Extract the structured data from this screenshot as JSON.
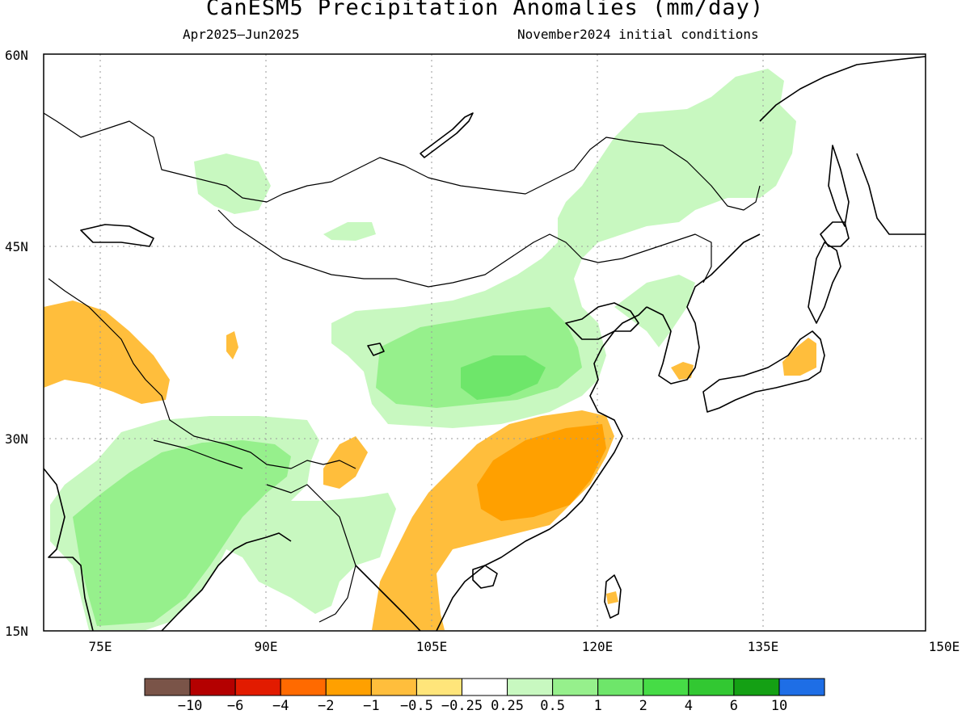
{
  "title": "CanESM5 Precipitation Anomalies (mm/day)",
  "period": "Apr2025—Jun2025",
  "initial_conditions": "November2024 initial conditions",
  "lat_labels": [
    "60N",
    "45N",
    "30N",
    "15N"
  ],
  "lon_labels": [
    "75E",
    "90E",
    "105E",
    "120E",
    "135E",
    "150E"
  ],
  "colorbar": {
    "colors": [
      "#7a5448",
      "#b40000",
      "#e21b00",
      "#ff6a00",
      "#ffa000",
      "#ffbe3c",
      "#ffe57a",
      "#ffffff",
      "#c8f8c0",
      "#96f08c",
      "#6ee66a",
      "#46dc46",
      "#32c832",
      "#14a014",
      "#1e6ee6"
    ],
    "labels": [
      "−10",
      "−6",
      "−4",
      "−2",
      "−1",
      "−0.5",
      "−0.25",
      "0.25",
      "0.5",
      "1",
      "2",
      "4",
      "6",
      "10"
    ]
  },
  "anomaly_regions": [
    {
      "name": "north-china-wet",
      "color": "#c8f8c0"
    },
    {
      "name": "north-china-wet-core",
      "color": "#96f08c"
    },
    {
      "name": "north-china-wet-max",
      "color": "#6ee66a"
    },
    {
      "name": "manchuria-wet",
      "color": "#c8f8c0"
    },
    {
      "name": "india-wet",
      "color": "#c8f8c0"
    },
    {
      "name": "india-wet-core",
      "color": "#96f08c"
    },
    {
      "name": "south-china-dry",
      "color": "#ffbe3c"
    },
    {
      "name": "south-china-dry-core",
      "color": "#ffa000"
    },
    {
      "name": "pakistan-dry",
      "color": "#ffbe3c"
    },
    {
      "name": "japan-dry",
      "color": "#ffbe3c"
    }
  ]
}
